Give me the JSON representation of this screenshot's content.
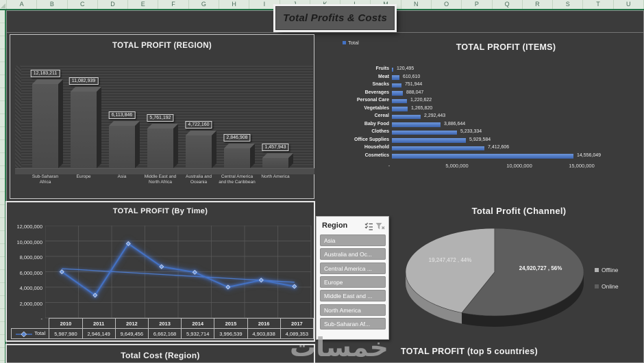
{
  "excel": {
    "columns": [
      "A",
      "B",
      "C",
      "D",
      "E",
      "F",
      "G",
      "H",
      "I",
      "J",
      "K",
      "L",
      "M",
      "N",
      "O",
      "P",
      "Q",
      "R",
      "S",
      "T",
      "U"
    ]
  },
  "header": {
    "title": "Total Profits & Costs"
  },
  "watermark": "خمسات",
  "slicer": {
    "title": "Region",
    "items": [
      "Asia",
      "Australia and Oc...",
      "Central America ...",
      "Europe",
      "Middle East and ...",
      "North America",
      "Sub-Saharan Af..."
    ]
  },
  "footer": {
    "left_title": "Total Cost (Region)",
    "right_title": "TOTAL PROFIT (top 5 countries)"
  },
  "chart_data": [
    {
      "id": "region",
      "type": "bar",
      "title": "TOTAL PROFIT (REGION)",
      "categories": [
        "Sub-Saharan Africa",
        "Europe",
        "Asia",
        "Middle East and North Africa",
        "Australia and Oceania",
        "Central America and the Caribbean",
        "North America"
      ],
      "values": [
        12183211,
        11082939,
        6113846,
        5761192,
        4722160,
        2846908,
        1457943
      ],
      "labels": [
        "12,183,211",
        "11,082,939",
        "6,113,846",
        "5,761,192",
        "4,722,160",
        "2,846,908",
        "1,457,943"
      ],
      "ylim": [
        0,
        14000000
      ],
      "bar_color": "#4f4f4f"
    },
    {
      "id": "items",
      "type": "bar",
      "orientation": "horizontal",
      "title": "TOTAL PROFIT (ITEMS)",
      "categories": [
        "Fruits",
        "Meat",
        "Snacks",
        "Beverages",
        "Personal Care",
        "Vegetables",
        "Cereal",
        "Baby Food",
        "Clothes",
        "Office Supplies",
        "Household",
        "Cosmetics"
      ],
      "values": [
        120495,
        610610,
        751944,
        888047,
        1220622,
        1265820,
        2292443,
        3886644,
        5233334,
        5929584,
        7412606,
        14556049
      ],
      "labels": [
        "120,495",
        "610,610",
        "751,944",
        "888,047",
        "1,220,622",
        "1,265,820",
        "2,292,443",
        "3,886,644",
        "5,233,334",
        "5,929,584",
        "7,412,606",
        "14,556,049"
      ],
      "x_ticks": [
        "-",
        "5,000,000",
        "10,000,000",
        "15,000,000"
      ],
      "xlim": [
        0,
        15000000
      ],
      "legend": [
        "Total"
      ],
      "series_color": "#4472c4"
    },
    {
      "id": "by_time",
      "type": "line",
      "title": "TOTAL PROFIT (By Time)",
      "x": [
        "2010",
        "2011",
        "2012",
        "2013",
        "2014",
        "2015",
        "2016",
        "2017"
      ],
      "series": [
        {
          "name": "Total",
          "values": [
            5987980,
            2946149,
            9649456,
            6662168,
            5932714,
            3996539,
            4903838,
            4089353
          ],
          "labels": [
            "5,987,980",
            "2,946,149",
            "9,649,456",
            "6,662,168",
            "5,932,714",
            "3,996,539",
            "4,903,838",
            "4,089,353"
          ]
        }
      ],
      "trendline": true,
      "y_ticks": [
        "12,000,000",
        "10,000,000",
        "8,000,000",
        "6,000,000",
        "4,000,000",
        "2,000,000",
        "-"
      ],
      "ylim": [
        0,
        12000000
      ],
      "grid": true,
      "line_color": "#4472c4"
    },
    {
      "id": "channel",
      "type": "pie",
      "title": "Total Profit (Channel)",
      "slices": [
        {
          "label": "Offline",
          "value": 19247472,
          "pct": 44,
          "text": "19,247,472 , 44%",
          "color": "#b2b2b2"
        },
        {
          "label": "Online",
          "value": 24920727,
          "pct": 56,
          "text": "24,920,727 , 56%",
          "color": "#5e5e5e"
        }
      ],
      "legend_position": "right"
    }
  ]
}
